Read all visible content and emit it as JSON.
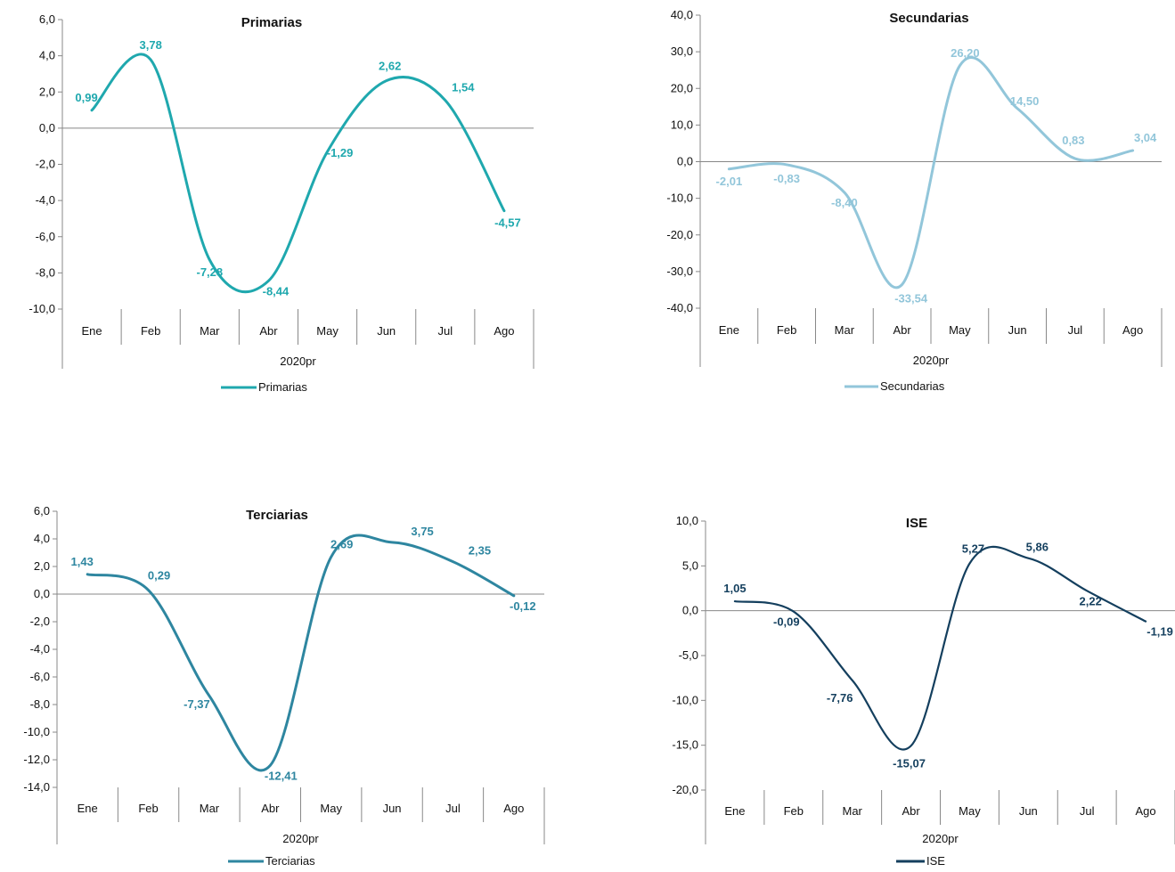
{
  "chart_data": [
    {
      "type": "line",
      "title": "Primarias",
      "color": "#1FA8AE",
      "categories": [
        "Ene",
        "Feb",
        "Mar",
        "Abr",
        "May",
        "Jun",
        "Jul",
        "Ago"
      ],
      "group_label": "2020pr",
      "ylim": [
        -10,
        6
      ],
      "yticks": [
        "6,0",
        "4,0",
        "2,0",
        "0,0",
        "-2,0",
        "-4,0",
        "-6,0",
        "-8,0",
        "-10,0"
      ],
      "series": [
        {
          "name": "Primarias",
          "values": [
            0.99,
            3.78,
            -7.28,
            -8.44,
            -1.29,
            2.62,
            1.54,
            -4.57
          ],
          "labels": [
            "0,99",
            "3,78",
            "-7,28",
            "-8,44",
            "-1,29",
            "2,62",
            "1,54",
            "-4,57"
          ]
        }
      ],
      "legend": "bottom"
    },
    {
      "type": "line",
      "title": "Secundarias",
      "color": "#92C6DA",
      "categories": [
        "Ene",
        "Feb",
        "Mar",
        "Abr",
        "May",
        "Jun",
        "Jul",
        "Ago"
      ],
      "group_label": "2020pr",
      "ylim": [
        -40,
        40
      ],
      "yticks": [
        "40,0",
        "30,0",
        "20,0",
        "10,0",
        "0,0",
        "-10,0",
        "-20,0",
        "-30,0",
        "-40,0"
      ],
      "series": [
        {
          "name": "Secundarias",
          "values": [
            -2.01,
            -0.83,
            -8.4,
            -33.54,
            26.2,
            14.5,
            0.83,
            3.04
          ],
          "labels": [
            "-2,01",
            "-0,83",
            "-8,40",
            "-33,54",
            "26,20",
            "14,50",
            "0,83",
            "3,04"
          ]
        }
      ],
      "legend": "bottom"
    },
    {
      "type": "line",
      "title": "Terciarias",
      "color": "#2E86A0",
      "categories": [
        "Ene",
        "Feb",
        "Mar",
        "Abr",
        "May",
        "Jun",
        "Jul",
        "Ago"
      ],
      "group_label": "2020pr",
      "ylim": [
        -14,
        6
      ],
      "yticks": [
        "6,0",
        "4,0",
        "2,0",
        "0,0",
        "-2,0",
        "-4,0",
        "-6,0",
        "-8,0",
        "-10,0",
        "-12,0",
        "-14,0"
      ],
      "series": [
        {
          "name": "Terciarias",
          "values": [
            1.43,
            0.29,
            -7.37,
            -12.41,
            2.69,
            3.75,
            2.35,
            -0.12
          ],
          "labels": [
            "1,43",
            "0,29",
            "-7,37",
            "-12,41",
            "2,69",
            "3,75",
            "2,35",
            "-0,12"
          ]
        }
      ],
      "legend": "bottom"
    },
    {
      "type": "line",
      "title": "ISE",
      "color": "#143F5E",
      "categories": [
        "Ene",
        "Feb",
        "Mar",
        "Abr",
        "May",
        "Jun",
        "Jul",
        "Ago"
      ],
      "group_label": "2020pr",
      "ylim": [
        -20,
        10
      ],
      "yticks": [
        "10,0",
        "5,0",
        "0,0",
        "-5,0",
        "-10,0",
        "-15,0",
        "-20,0"
      ],
      "series": [
        {
          "name": "ISE",
          "values": [
            1.05,
            -0.09,
            -7.76,
            -15.07,
            5.27,
            5.86,
            2.22,
            -1.19
          ],
          "labels": [
            "1,05",
            "-0,09",
            "-7,76",
            "-15,07",
            "5,27",
            "5,86",
            "2,22",
            "-1,19"
          ]
        }
      ],
      "legend": "bottom"
    }
  ]
}
